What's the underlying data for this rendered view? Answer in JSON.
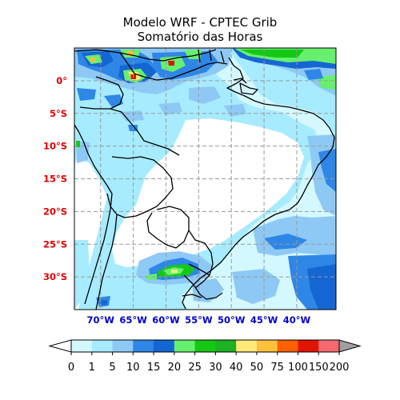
{
  "title": {
    "line1": "Modelo WRF - CPTEC Grib",
    "line2": "Somatório das Horas"
  },
  "map": {
    "lat_labels": [
      "0°",
      "5°S",
      "10°S",
      "15°S",
      "20°S",
      "25°S",
      "30°S"
    ],
    "lon_labels": [
      "70°W",
      "65°W",
      "60°W",
      "55°W",
      "50°W",
      "45°W",
      "40°W"
    ],
    "lon_range": [
      -74,
      -34
    ],
    "lat_range": [
      -35,
      5
    ],
    "grid": true
  },
  "colorbar": {
    "tick_labels": [
      "0",
      "1",
      "5",
      "10",
      "15",
      "20",
      "25",
      "30",
      "40",
      "50",
      "75",
      "100",
      "150",
      "200"
    ],
    "colors": [
      "#ffffff",
      "#d4f8ff",
      "#a6ebff",
      "#8ec9f5",
      "#2e86e6",
      "#1466d3",
      "#66f06e",
      "#14c814",
      "#1cb023",
      "#ffe978",
      "#ffc03c",
      "#ff6000",
      "#e11400",
      "#f56a70"
    ],
    "extend_low": "#ffffff",
    "extend_high": "#a0a0a0"
  },
  "palette": {
    "ocean": "#a6ebff",
    "land_light": "#d4f8ff",
    "land_dry": "#ffffff",
    "heavy": "#1466d3",
    "green": "#14c814"
  }
}
